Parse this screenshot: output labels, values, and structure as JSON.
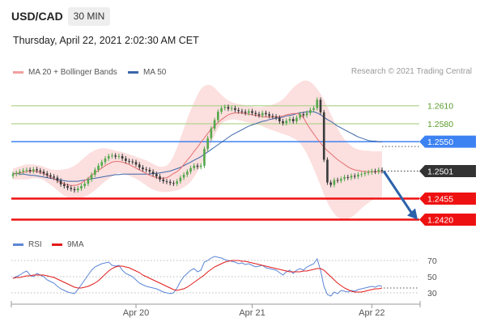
{
  "header": {
    "pair": "USD/CAD",
    "timeframe": "30 MIN",
    "datetime": "Thursday, April 22, 2021 2:02:30 AM CET"
  },
  "legend": {
    "ma20_label": "MA 20 + Bollinger Bands",
    "ma50_label": "MA 50",
    "credit": "Research © 2021 Trading Central",
    "rsi_label": "RSI",
    "ma9_label": "9MA"
  },
  "colors": {
    "up_candle": "#55a84c",
    "down_candle": "#3a3a3a",
    "ma20": "#e46f6f",
    "ma50": "#3c66a7",
    "bollinger_fill": "#fcd9d9",
    "support": "#ee1111",
    "resistance_blue": "#3d82f2",
    "resistance_green": "#b3d48f",
    "rsi": "#5b86d6",
    "rsi_ma": "#e31a1a",
    "projection_arrow": "#2b62aa",
    "price_tag": "#333333"
  },
  "chart_data": [
    {
      "type": "candlestick",
      "x_tick_labels": [
        "Apr 20",
        "Apr 21",
        "Apr 22"
      ],
      "ylim": [
        1.2395,
        1.2665
      ],
      "series": [
        {
          "name": "USD/CAD",
          "values": [
            1.2496,
            1.2498,
            1.25,
            1.2502,
            1.2503,
            1.2501,
            1.2504,
            1.2502,
            1.25,
            1.2497,
            1.2494,
            1.2492,
            1.249,
            1.2485,
            1.2479,
            1.2476,
            1.2473,
            1.2471,
            1.2469,
            1.2472,
            1.2476,
            1.248,
            1.2487,
            1.2495,
            1.2503,
            1.251,
            1.2516,
            1.2522,
            1.2526,
            1.2527,
            1.2525,
            1.2526,
            1.2522,
            1.2518,
            1.2517,
            1.2516,
            1.2512,
            1.2507,
            1.2504,
            1.2503,
            1.25,
            1.2496,
            1.2492,
            1.2487,
            1.2484,
            1.2483,
            1.2481,
            1.248,
            1.2484,
            1.249,
            1.2495,
            1.25,
            1.2506,
            1.251,
            1.2508,
            1.251,
            1.2538,
            1.2556,
            1.2572,
            1.2586,
            1.26,
            1.2606,
            1.2608,
            1.2605,
            1.2606,
            1.2603,
            1.2601,
            1.26,
            1.2598,
            1.2601,
            1.2598,
            1.2596,
            1.2594,
            1.2598,
            1.2596,
            1.2593,
            1.2592,
            1.259,
            1.2584,
            1.2581,
            1.2585,
            1.2588,
            1.2584,
            1.259,
            1.2596,
            1.2594,
            1.2598,
            1.2603,
            1.2606,
            1.262,
            1.2599,
            1.252,
            1.2482,
            1.2478,
            1.2486,
            1.2485,
            1.2488,
            1.2491,
            1.249,
            1.2493,
            1.2492,
            1.2495,
            1.2496,
            1.2498,
            1.2499,
            1.2501,
            1.25,
            1.2503,
            1.2501
          ]
        },
        {
          "name": "MA 20",
          "values": [
            1.2496,
            1.2497,
            1.2498,
            1.2499,
            1.25,
            1.2501,
            1.2501,
            1.25,
            1.2499,
            1.2497,
            1.2494,
            1.2491,
            1.2488,
            1.2485,
            1.2482,
            1.248,
            1.2478,
            1.2477,
            1.2477,
            1.2478,
            1.2481,
            1.2485,
            1.2489,
            1.2494,
            1.2498,
            1.2502,
            1.2506,
            1.251,
            1.2513,
            1.2516,
            1.2517,
            1.2517,
            1.2516,
            1.2514,
            1.2512,
            1.2509,
            1.2506,
            1.2503,
            1.25,
            1.2497,
            1.2494,
            1.2492,
            1.249,
            1.2489,
            1.2489,
            1.249,
            1.2493,
            1.2497,
            1.25,
            1.2505,
            1.2512,
            1.2519,
            1.2526,
            1.2534,
            1.2541,
            1.2549,
            1.2556,
            1.2564,
            1.2571,
            1.2576,
            1.2582,
            1.2587,
            1.2591,
            1.2595,
            1.2597,
            1.2598,
            1.2598,
            1.2598,
            1.2597,
            1.2596,
            1.2595,
            1.2594,
            1.2593,
            1.2592,
            1.2591,
            1.2591,
            1.2591,
            1.2591,
            1.2592,
            1.2593,
            1.2595,
            1.2596,
            1.2597,
            1.2597,
            1.2596,
            1.259,
            1.258,
            1.2571,
            1.2563,
            1.2555,
            1.2548,
            1.2541,
            1.2535,
            1.253,
            1.2525,
            1.252,
            1.2516,
            1.2512,
            1.2508,
            1.2505,
            1.2503,
            1.2502,
            1.2501,
            1.25,
            1.25,
            1.25,
            1.25,
            1.25,
            1.25
          ]
        },
        {
          "name": "MA 50",
          "values": [
            1.2497,
            1.2497,
            1.2496,
            1.2496,
            1.2495,
            1.2494,
            1.2494,
            1.2493,
            1.2492,
            1.2491,
            1.249,
            1.2489,
            1.2488,
            1.2487,
            1.2486,
            1.2485,
            1.2484,
            1.2484,
            1.2484,
            1.2484,
            1.2485,
            1.2486,
            1.2487,
            1.2488,
            1.2489,
            1.249,
            1.2491,
            1.2492,
            1.2493,
            1.2494,
            1.2495,
            1.2495,
            1.2496,
            1.2496,
            1.2496,
            1.2496,
            1.2496,
            1.2496,
            1.2496,
            1.2496,
            1.2496,
            1.2497,
            1.2497,
            1.2498,
            1.2499,
            1.25,
            1.2501,
            1.2503,
            1.2505,
            1.2507,
            1.251,
            1.2513,
            1.2516,
            1.2519,
            1.2522,
            1.2525,
            1.2529,
            1.2533,
            1.2537,
            1.2541,
            1.2545,
            1.2549,
            1.2553,
            1.2557,
            1.2561,
            1.2564,
            1.2567,
            1.257,
            1.2573,
            1.2576,
            1.2578,
            1.258,
            1.2582,
            1.2584,
            1.2585,
            1.2587,
            1.2588,
            1.2589,
            1.259,
            1.2591,
            1.2593,
            1.2594,
            1.2595,
            1.2597,
            1.2598,
            1.2599,
            1.26,
            1.26,
            1.26,
            1.2598,
            1.2595,
            1.2591,
            1.2587,
            1.2584,
            1.258,
            1.2576,
            1.2573,
            1.257,
            1.2567,
            1.2564,
            1.2561,
            1.2558,
            1.2556,
            1.2554,
            1.2552,
            1.2551,
            1.2551,
            1.255,
            1.255
          ]
        },
        {
          "name": "Bollinger Upper",
          "values": [
            1.2505,
            1.2507,
            1.2509,
            1.2511,
            1.2512,
            1.2512,
            1.2512,
            1.2511,
            1.251,
            1.2508,
            1.2506,
            1.2504,
            1.2503,
            1.2503,
            1.2503,
            1.2504,
            1.2505,
            1.2507,
            1.251,
            1.2514,
            1.2519,
            1.2524,
            1.2529,
            1.2533,
            1.2536,
            1.2538,
            1.2539,
            1.2539,
            1.2538,
            1.2537,
            1.2535,
            1.2534,
            1.2533,
            1.2531,
            1.2529,
            1.2527,
            1.2525,
            1.2523,
            1.2521,
            1.2519,
            1.2516,
            1.2513,
            1.251,
            1.2508,
            1.2508,
            1.251,
            1.2516,
            1.2526,
            1.254,
            1.2556,
            1.2572,
            1.2588,
            1.2603,
            1.2616,
            1.2628,
            1.2638,
            1.2643,
            1.2645,
            1.2644,
            1.264,
            1.2634,
            1.2628,
            1.2623,
            1.2619,
            1.2616,
            1.2614,
            1.2613,
            1.2612,
            1.2611,
            1.261,
            1.2609,
            1.2608,
            1.2608,
            1.2608,
            1.2609,
            1.261,
            1.2612,
            1.2614,
            1.2617,
            1.2621,
            1.2627,
            1.2634,
            1.264,
            1.2645,
            1.2649,
            1.2652,
            1.2652,
            1.265,
            1.2645,
            1.2638,
            1.263,
            1.262,
            1.2608,
            1.2596,
            1.2584,
            1.2572,
            1.2562,
            1.2554,
            1.2548,
            1.2543,
            1.2539,
            1.2537,
            1.2536,
            1.2535,
            1.2535,
            1.2534,
            1.2534,
            1.2534,
            1.2534
          ]
        },
        {
          "name": "Bollinger Lower",
          "values": [
            1.2487,
            1.2487,
            1.2487,
            1.2487,
            1.2487,
            1.2488,
            1.2489,
            1.2489,
            1.2488,
            1.2486,
            1.2482,
            1.2478,
            1.2474,
            1.2469,
            1.2464,
            1.246,
            1.2457,
            1.2456,
            1.2455,
            1.2455,
            1.2456,
            1.2458,
            1.2461,
            1.2465,
            1.2469,
            1.2474,
            1.2479,
            1.2484,
            1.2488,
            1.2492,
            1.2496,
            1.2498,
            1.2497,
            1.2495,
            1.2493,
            1.2491,
            1.2488,
            1.2485,
            1.2481,
            1.2477,
            1.2473,
            1.247,
            1.2468,
            1.2467,
            1.2466,
            1.2466,
            1.2467,
            1.2468,
            1.2469,
            1.2471,
            1.2474,
            1.2478,
            1.2483,
            1.2491,
            1.25,
            1.251,
            1.2521,
            1.2534,
            1.2548,
            1.2561,
            1.2572,
            1.258,
            1.2584,
            1.2586,
            1.2587,
            1.2587,
            1.2586,
            1.2585,
            1.2583,
            1.2582,
            1.2581,
            1.2579,
            1.2578,
            1.2576,
            1.2573,
            1.2571,
            1.2569,
            1.2567,
            1.2565,
            1.2563,
            1.2561,
            1.2559,
            1.2556,
            1.2553,
            1.2548,
            1.254,
            1.253,
            1.2518,
            1.2505,
            1.2491,
            1.2477,
            1.2462,
            1.2449,
            1.2438,
            1.243,
            1.2424,
            1.2421,
            1.242,
            1.2421,
            1.2424,
            1.2428,
            1.2433,
            1.2439,
            1.2444,
            1.2448,
            1.2452,
            1.2454,
            1.2456,
            1.2458
          ]
        }
      ],
      "levels": [
        {
          "value": 1.261,
          "label": "1.2610",
          "style": "resistance"
        },
        {
          "value": 1.258,
          "label": "1.2580",
          "style": "resistance"
        },
        {
          "value": 1.255,
          "label": "1.2550",
          "style": "pivot"
        },
        {
          "value": 1.2501,
          "label": "1.2501",
          "style": "last_price"
        },
        {
          "value": 1.2455,
          "label": "1.2455",
          "style": "support"
        },
        {
          "value": 1.242,
          "label": "1.2420",
          "style": "support"
        }
      ],
      "projection": {
        "from": 1.2501,
        "to": 1.242
      }
    },
    {
      "type": "line",
      "ylim": [
        20,
        80
      ],
      "y_ticks": [
        70,
        50,
        30
      ],
      "series": [
        {
          "name": "RSI",
          "values": [
            48,
            50,
            52,
            55,
            57,
            52,
            50,
            54,
            52,
            50,
            46,
            44,
            42,
            38,
            35,
            33,
            31,
            30,
            29,
            34,
            40,
            46,
            52,
            58,
            62,
            64,
            66,
            67,
            68,
            64,
            63,
            64,
            58,
            54,
            52,
            50,
            46,
            42,
            40,
            38,
            37,
            36,
            35,
            33,
            31,
            30,
            29,
            30,
            36,
            44,
            50,
            54,
            58,
            60,
            56,
            58,
            68,
            70,
            73,
            75,
            74,
            73,
            71,
            70,
            69,
            68,
            66,
            67,
            65,
            66,
            64,
            62,
            63,
            64,
            61,
            60,
            59,
            58,
            55,
            52,
            56,
            58,
            54,
            58,
            60,
            58,
            62,
            64,
            66,
            72,
            58,
            38,
            28,
            26,
            31,
            29,
            33,
            32,
            31,
            33,
            32,
            34,
            35,
            36,
            37,
            38,
            37,
            39,
            38
          ]
        },
        {
          "name": "9MA",
          "values": [
            48,
            49,
            49,
            50,
            51,
            51,
            52,
            52,
            52,
            52,
            51,
            50,
            49,
            47,
            45,
            43,
            41,
            39,
            37,
            36,
            36,
            37,
            38,
            40,
            42,
            45,
            49,
            53,
            57,
            60,
            62,
            63,
            63,
            62,
            61,
            59,
            57,
            55,
            52,
            50,
            48,
            46,
            44,
            42,
            40,
            38,
            36,
            34,
            33,
            34,
            35,
            37,
            40,
            43,
            46,
            49,
            52,
            56,
            59,
            62,
            64,
            66,
            68,
            69,
            70,
            70,
            70,
            69,
            69,
            68,
            67,
            66,
            65,
            64,
            63,
            62,
            61,
            60,
            59,
            58,
            57,
            56,
            56,
            56,
            56,
            57,
            57,
            58,
            59,
            60,
            60,
            58,
            54,
            50,
            46,
            42,
            39,
            36,
            34,
            32,
            31,
            31,
            31,
            32,
            33,
            34,
            35,
            35,
            36
          ]
        }
      ]
    }
  ]
}
